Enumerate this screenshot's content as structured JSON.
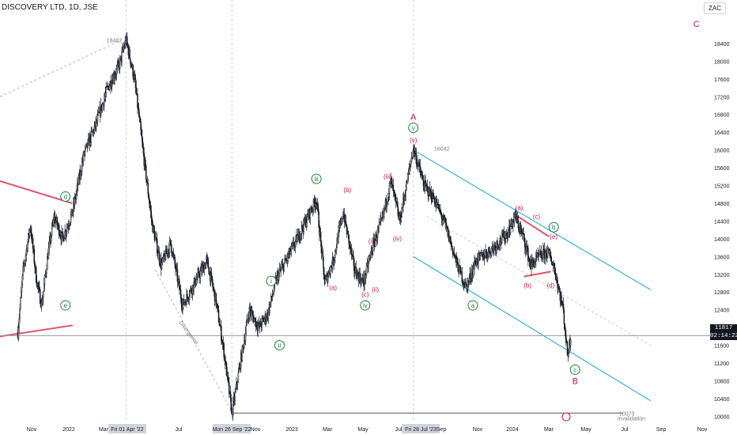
{
  "header": {
    "symbol_line": "DISCOVERY LTD, 1D, JSE"
  },
  "currency_badge": "ZAC",
  "colors": {
    "candle": "#131722",
    "wave_green": "#1b7f3b",
    "wave_pink": "#c2185b",
    "channel": "#33b5cf",
    "trend_red": "#e05266",
    "dashed": "#b2b5be"
  },
  "chart_data": {
    "type": "candlestick",
    "title": "DISCOVERY LTD, 1D, JSE",
    "ylim": [
      9900,
      19200
    ],
    "y_ticks": [
      10000,
      10400,
      10800,
      11200,
      11600,
      12000,
      12400,
      12800,
      13200,
      13600,
      14000,
      14400,
      14800,
      15200,
      15600,
      16000,
      16400,
      16800,
      17200,
      17600,
      18000,
      18400
    ],
    "x_tick_labels": [
      "Nov",
      "2022",
      "Mar",
      "Fri 01 Apr '22",
      "Jul",
      "Mon 26 Sep '22",
      "Nov",
      "2023",
      "Mar",
      "May",
      "Jul",
      "Fri 28 Jul '23",
      "Sep",
      "Nov",
      "2024",
      "Mar",
      "May",
      "Jul",
      "Sep",
      "Nov"
    ],
    "last_price": {
      "value": 11817,
      "label": "11817",
      "countdown": "02:14:22"
    },
    "price_path": [
      [
        "2021-10-01",
        11900
      ],
      [
        "2021-10-10",
        13300
      ],
      [
        "2021-10-22",
        14300
      ],
      [
        "2021-11-01",
        13100
      ],
      [
        "2021-11-10",
        12500
      ],
      [
        "2021-11-20",
        13600
      ],
      [
        "2021-12-01",
        14500
      ],
      [
        "2021-12-15",
        14000
      ],
      [
        "2022-01-01",
        14600
      ],
      [
        "2022-01-20",
        15900
      ],
      [
        "2022-02-10",
        16600
      ],
      [
        "2022-03-01",
        17400
      ],
      [
        "2022-03-20",
        17900
      ],
      [
        "2022-04-01",
        18482
      ],
      [
        "2022-04-15",
        17600
      ],
      [
        "2022-05-01",
        15800
      ],
      [
        "2022-05-15",
        14300
      ],
      [
        "2022-05-30",
        13400
      ],
      [
        "2022-06-15",
        13900
      ],
      [
        "2022-07-05",
        12500
      ],
      [
        "2022-07-25",
        13000
      ],
      [
        "2022-08-15",
        13500
      ],
      [
        "2022-08-30",
        12600
      ],
      [
        "2022-09-12",
        11500
      ],
      [
        "2022-09-26",
        10073
      ],
      [
        "2022-10-10",
        11200
      ],
      [
        "2022-10-25",
        12400
      ],
      [
        "2022-11-10",
        12000
      ],
      [
        "2022-11-25",
        12300
      ],
      [
        "2022-12-10",
        13100
      ],
      [
        "2023-01-10",
        13900
      ],
      [
        "2023-02-15",
        14900
      ],
      [
        "2023-03-01",
        13000
      ],
      [
        "2023-03-15",
        13500
      ],
      [
        "2023-04-01",
        14600
      ],
      [
        "2023-04-20",
        13300
      ],
      [
        "2023-05-05",
        13000
      ],
      [
        "2023-05-20",
        13800
      ],
      [
        "2023-06-05",
        14400
      ],
      [
        "2023-06-20",
        15300
      ],
      [
        "2023-07-05",
        14400
      ],
      [
        "2023-07-28",
        16042
      ],
      [
        "2023-08-15",
        15200
      ],
      [
        "2023-09-01",
        14900
      ],
      [
        "2023-09-20",
        14300
      ],
      [
        "2023-10-10",
        13400
      ],
      [
        "2023-10-25",
        12900
      ],
      [
        "2023-11-10",
        13500
      ],
      [
        "2023-12-01",
        13700
      ],
      [
        "2024-01-01",
        14100
      ],
      [
        "2024-01-15",
        14500
      ],
      [
        "2024-01-30",
        14000
      ],
      [
        "2024-02-10",
        13400
      ],
      [
        "2024-02-25",
        13600
      ],
      [
        "2024-03-10",
        13700
      ],
      [
        "2024-03-20",
        13400
      ],
      [
        "2024-03-28",
        12900
      ],
      [
        "2024-04-05",
        12400
      ],
      [
        "2024-04-12",
        11400
      ],
      [
        "2024-04-18",
        11817
      ]
    ],
    "price_labels": [
      {
        "label": "18482",
        "date": "2022-03-25",
        "value": 18482
      },
      {
        "label": "16042",
        "date": "2023-09-01",
        "value": 16042
      },
      {
        "label": "10073",
        "date": "2024-07-08",
        "value": 10073
      }
    ],
    "annotations": [
      {
        "text": "A",
        "date": "2023-07-28",
        "value": 16750,
        "color": "pink",
        "style": "plain",
        "size": "large"
      },
      {
        "text": "v",
        "date": "2023-07-28",
        "value": 16500,
        "color": "green",
        "style": "circle"
      },
      {
        "text": "(v)",
        "date": "2023-07-28",
        "value": 16220,
        "color": "pink",
        "style": "plain"
      },
      {
        "text": "(iii)",
        "date": "2023-06-15",
        "value": 15400,
        "color": "pink",
        "style": "plain"
      },
      {
        "text": "(iv)",
        "date": "2023-07-01",
        "value": 14000,
        "color": "pink",
        "style": "plain"
      },
      {
        "text": "iii",
        "date": "2023-02-15",
        "value": 15350,
        "color": "green",
        "style": "circle"
      },
      {
        "text": "(b)",
        "date": "2023-04-08",
        "value": 15100,
        "color": "pink",
        "style": "plain"
      },
      {
        "text": "(i)",
        "date": "2023-05-18",
        "value": 13950,
        "color": "pink",
        "style": "plain"
      },
      {
        "text": "(a)",
        "date": "2023-03-15",
        "value": 12900,
        "color": "pink",
        "style": "plain"
      },
      {
        "text": "(c)",
        "date": "2023-05-08",
        "value": 12750,
        "color": "pink",
        "style": "plain"
      },
      {
        "text": "(ii)",
        "date": "2023-05-25",
        "value": 12850,
        "color": "pink",
        "style": "plain"
      },
      {
        "text": "iv",
        "date": "2023-05-08",
        "value": 12500,
        "color": "green",
        "style": "circle"
      },
      {
        "text": "i",
        "date": "2022-12-01",
        "value": 13050,
        "color": "green",
        "style": "circle"
      },
      {
        "text": "ii",
        "date": "2022-12-15",
        "value": 11600,
        "color": "green",
        "style": "circle"
      },
      {
        "text": "d",
        "date": "2021-12-20",
        "value": 14950,
        "color": "green",
        "style": "circle"
      },
      {
        "text": "e",
        "date": "2021-12-20",
        "value": 12500,
        "color": "green",
        "style": "circle"
      },
      {
        "text": "a",
        "date": "2023-11-05",
        "value": 12500,
        "color": "green",
        "style": "circle"
      },
      {
        "text": "(a)",
        "date": "2024-01-22",
        "value": 14700,
        "color": "pink",
        "style": "plain"
      },
      {
        "text": "(c)",
        "date": "2024-02-20",
        "value": 14500,
        "color": "pink",
        "style": "plain"
      },
      {
        "text": "b",
        "date": "2024-03-20",
        "value": 14260,
        "color": "green",
        "style": "circle"
      },
      {
        "text": "(e)",
        "date": "2024-03-20",
        "value": 14050,
        "color": "pink",
        "style": "plain"
      },
      {
        "text": "(b)",
        "date": "2024-02-05",
        "value": 12950,
        "color": "pink",
        "style": "plain"
      },
      {
        "text": "(d)",
        "date": "2024-03-15",
        "value": 12950,
        "color": "pink",
        "style": "plain"
      },
      {
        "text": "c",
        "date": "2024-04-25",
        "value": 11050,
        "color": "green",
        "style": "circle"
      },
      {
        "text": "B",
        "date": "2024-04-25",
        "value": 10800,
        "color": "pink",
        "style": "plain",
        "size": "large"
      },
      {
        "text": "C",
        "date": "2024-11-15",
        "value": 18840,
        "color": "pink",
        "style": "plain",
        "size": "large"
      }
    ],
    "divergence_text": "Divergence",
    "invalidation_text": "invalidation",
    "lines": {
      "channel_upper": [
        [
          "2023-07-28",
          16000
        ],
        [
          "2024-08-30",
          12850
        ]
      ],
      "channel_lower": [
        [
          "2023-07-28",
          13600
        ],
        [
          "2024-08-30",
          10350
        ]
      ],
      "channel_mid": [
        [
          "2023-08-20",
          14500
        ],
        [
          "2024-08-30",
          11600
        ]
      ],
      "triangle_top_red": [
        [
          "2024-01-20",
          14500
        ],
        [
          "2024-03-12",
          14050
        ]
      ],
      "triangle_bottom_red": [
        [
          "2024-01-30",
          13150
        ],
        [
          "2024-03-15",
          13260
        ]
      ],
      "trend_d_red": [
        [
          "2021-09-01",
          15300
        ],
        [
          "2021-12-31",
          14800
        ]
      ],
      "trend_e_red": [
        [
          "2021-09-01",
          11800
        ],
        [
          "2022-01-01",
          12050
        ]
      ],
      "support_10073": [
        [
          "2022-09-26",
          10073
        ],
        [
          "2024-07-15",
          10073
        ]
      ],
      "dashed_from_top": [
        [
          "2021-09-01",
          17200
        ],
        [
          "2022-03-25",
          18482
        ]
      ],
      "divergence_dashed": [
        [
          "2022-05-20",
          13300
        ],
        [
          "2022-09-26",
          10100
        ]
      ],
      "last_price_line": [
        [
          "2021-09-01",
          11817
        ],
        [
          "2024-12-08",
          11817
        ]
      ]
    },
    "crosshair_dates": [
      "2022-04-01",
      "2022-09-26",
      "2023-07-28"
    ],
    "x_axis": {
      "start": "2021-09-01",
      "end": "2024-12-08"
    },
    "grid": false,
    "legend": "none"
  }
}
